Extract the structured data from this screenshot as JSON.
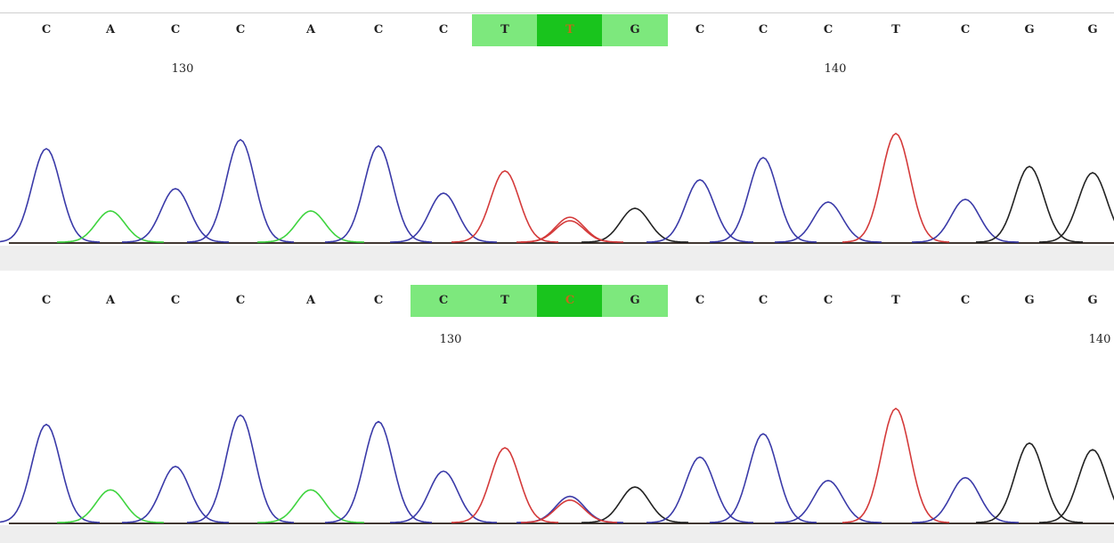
{
  "panels": [
    {
      "id": "top",
      "bases": [
        "C",
        "A",
        "C",
        "C",
        "A",
        "C",
        "C",
        "T",
        "T",
        "G",
        "C",
        "C",
        "C",
        "T",
        "C",
        "G",
        "G"
      ],
      "highlight_light": [
        7,
        9
      ],
      "highlight_dark": [
        8
      ],
      "mutant_index": 8,
      "positions": [
        {
          "label": "130",
          "index": 2
        },
        {
          "label": "140",
          "index": 12
        }
      ]
    },
    {
      "id": "bottom",
      "bases": [
        "C",
        "A",
        "C",
        "C",
        "A",
        "C",
        "C",
        "T",
        "C",
        "G",
        "C",
        "C",
        "C",
        "T",
        "C",
        "G",
        "G"
      ],
      "highlight_light": [
        6,
        9
      ],
      "highlight_dark": [
        8
      ],
      "mutant_index": 8,
      "positions": [
        {
          "label": "130",
          "index": 6
        },
        {
          "label": "140",
          "index": 16
        }
      ]
    }
  ],
  "trace_colors": {
    "C": "#3a3aa8",
    "A": "#3fd43f",
    "T": "#d43a3a",
    "G": "#222222"
  }
}
